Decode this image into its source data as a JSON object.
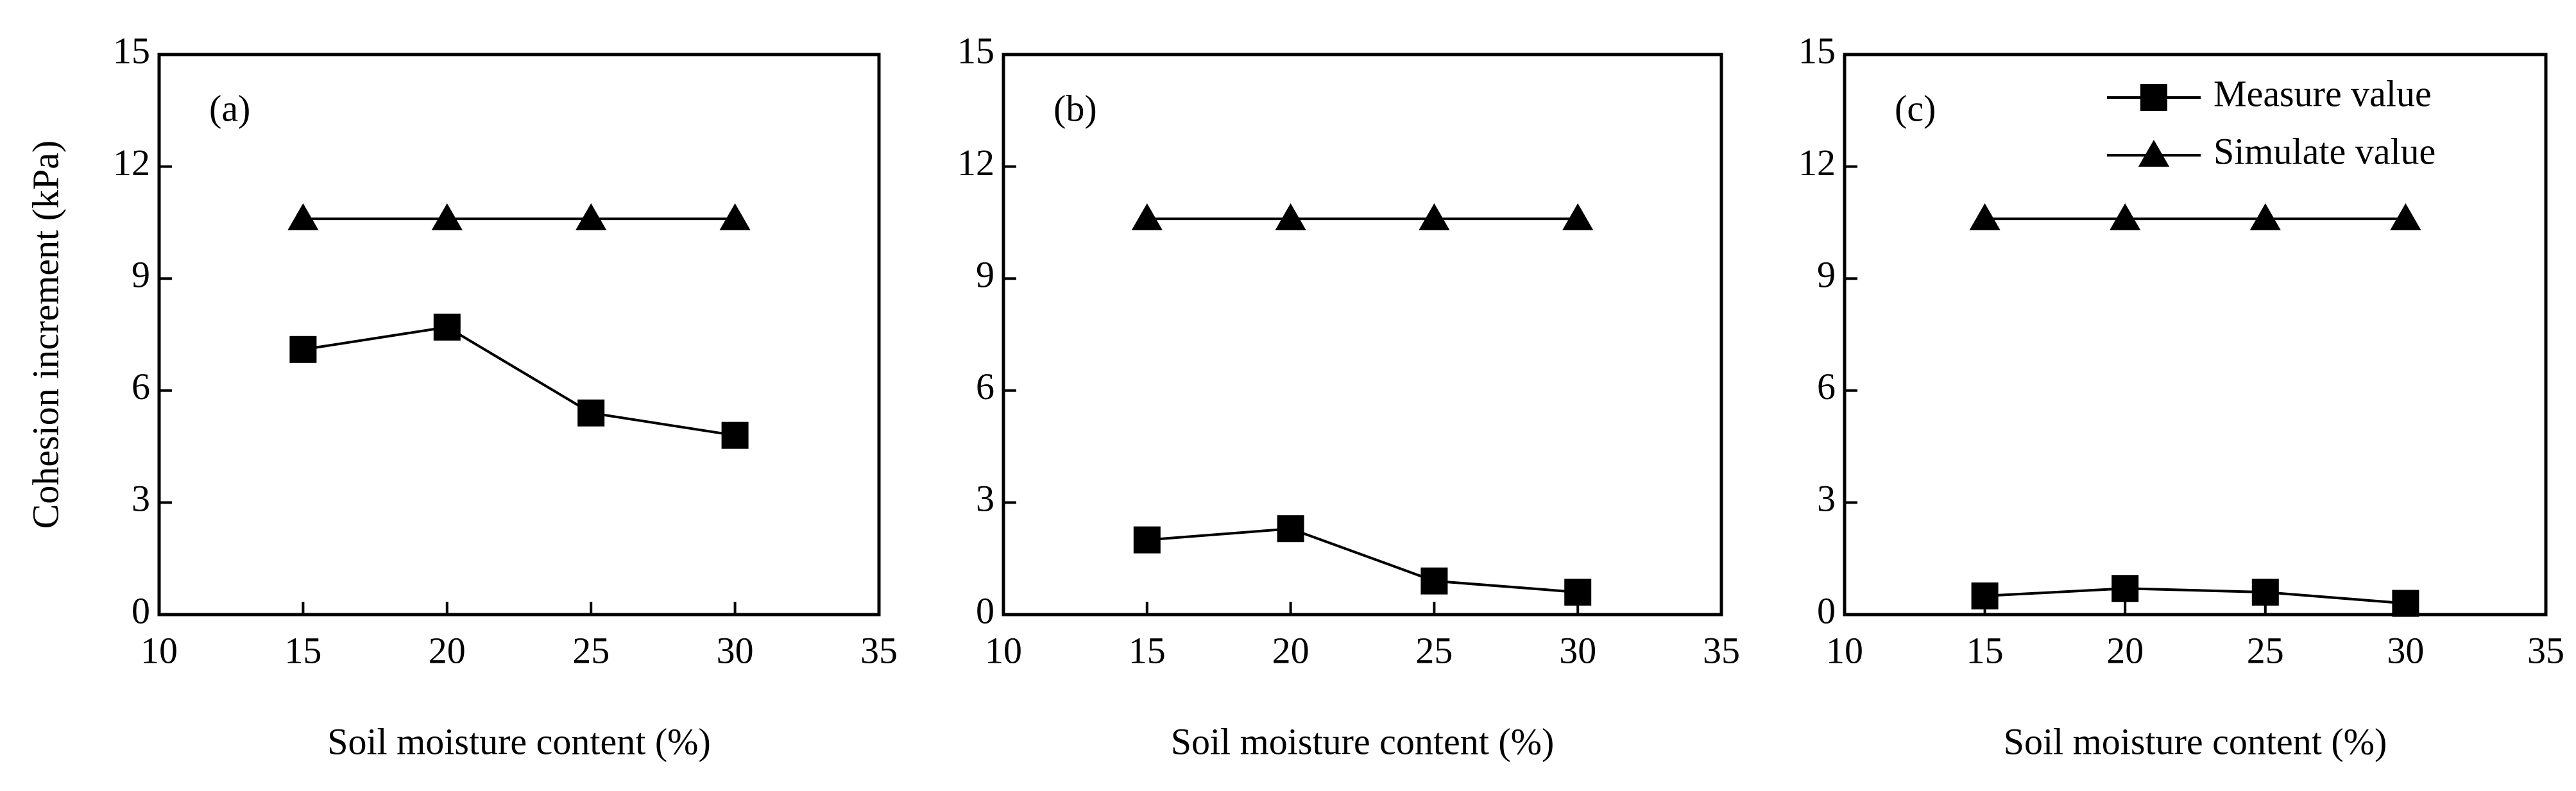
{
  "chart_data": [
    {
      "type": "line",
      "panel_label": "(a)",
      "ylabel": "Cohesion increment (kPa)",
      "xlabel": "Soil moisture content (%)",
      "x": [
        15,
        20,
        25,
        30
      ],
      "xlim": [
        10,
        35
      ],
      "xticks": [
        10,
        15,
        20,
        25,
        30,
        35
      ],
      "ylim": [
        0,
        15
      ],
      "yticks": [
        0,
        3,
        6,
        9,
        12,
        15
      ],
      "series": [
        {
          "marker": "square",
          "color": "#000000",
          "values": [
            7.1,
            7.7,
            5.4,
            4.8
          ]
        },
        {
          "marker": "triangle",
          "color": "#000000",
          "values": [
            10.6,
            10.6,
            10.6,
            10.6
          ]
        }
      ]
    },
    {
      "type": "line",
      "panel_label": "(b)",
      "xlabel": "Soil moisture content (%)",
      "x": [
        15,
        20,
        25,
        30
      ],
      "xlim": [
        10,
        35
      ],
      "xticks": [
        10,
        15,
        20,
        25,
        30,
        35
      ],
      "ylim": [
        0,
        15
      ],
      "yticks": [
        0,
        3,
        6,
        9,
        12,
        15
      ],
      "series": [
        {
          "marker": "square",
          "color": "#000000",
          "values": [
            2.0,
            2.3,
            0.9,
            0.6
          ]
        },
        {
          "marker": "triangle",
          "color": "#000000",
          "values": [
            10.6,
            10.6,
            10.6,
            10.6
          ]
        }
      ]
    },
    {
      "type": "line",
      "panel_label": "(c)",
      "xlabel": "Soil moisture content (%)",
      "legend": "upper right",
      "x": [
        15,
        20,
        25,
        30
      ],
      "xlim": [
        10,
        35
      ],
      "xticks": [
        10,
        15,
        20,
        25,
        30,
        35
      ],
      "ylim": [
        0,
        15
      ],
      "yticks": [
        0,
        3,
        6,
        9,
        12,
        15
      ],
      "series": [
        {
          "name": "Measure value",
          "marker": "square",
          "color": "#000000",
          "values": [
            0.5,
            0.7,
            0.6,
            0.3
          ]
        },
        {
          "name": "Simulate value",
          "marker": "triangle",
          "color": "#000000",
          "values": [
            10.6,
            10.6,
            10.6,
            10.6
          ]
        }
      ]
    }
  ]
}
